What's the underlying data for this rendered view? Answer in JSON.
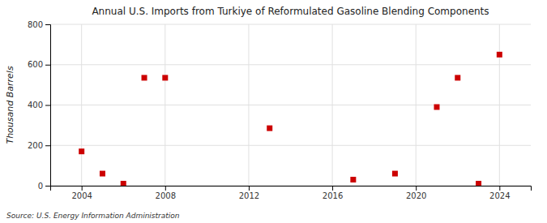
{
  "chart_data": {
    "type": "scatter",
    "title": "Annual U.S. Imports from Turkiye of Reformulated Gasoline Blending Components",
    "ylabel": "Thousand Barrels",
    "source": "Source: U.S. Energy Information Administration",
    "x": [
      2004,
      2005,
      2006,
      2007,
      2008,
      2013,
      2017,
      2019,
      2021,
      2022,
      2023,
      2024
    ],
    "values": [
      170,
      60,
      10,
      535,
      535,
      285,
      30,
      60,
      390,
      535,
      10,
      650
    ],
    "color": "#cc0000",
    "marker": "square",
    "xlim": [
      2002.5,
      2025.5
    ],
    "ylim": [
      0,
      800
    ],
    "xticks": [
      2004,
      2008,
      2012,
      2016,
      2020,
      2024
    ],
    "yticks": [
      0,
      200,
      400,
      600,
      800
    ],
    "grid": true
  }
}
